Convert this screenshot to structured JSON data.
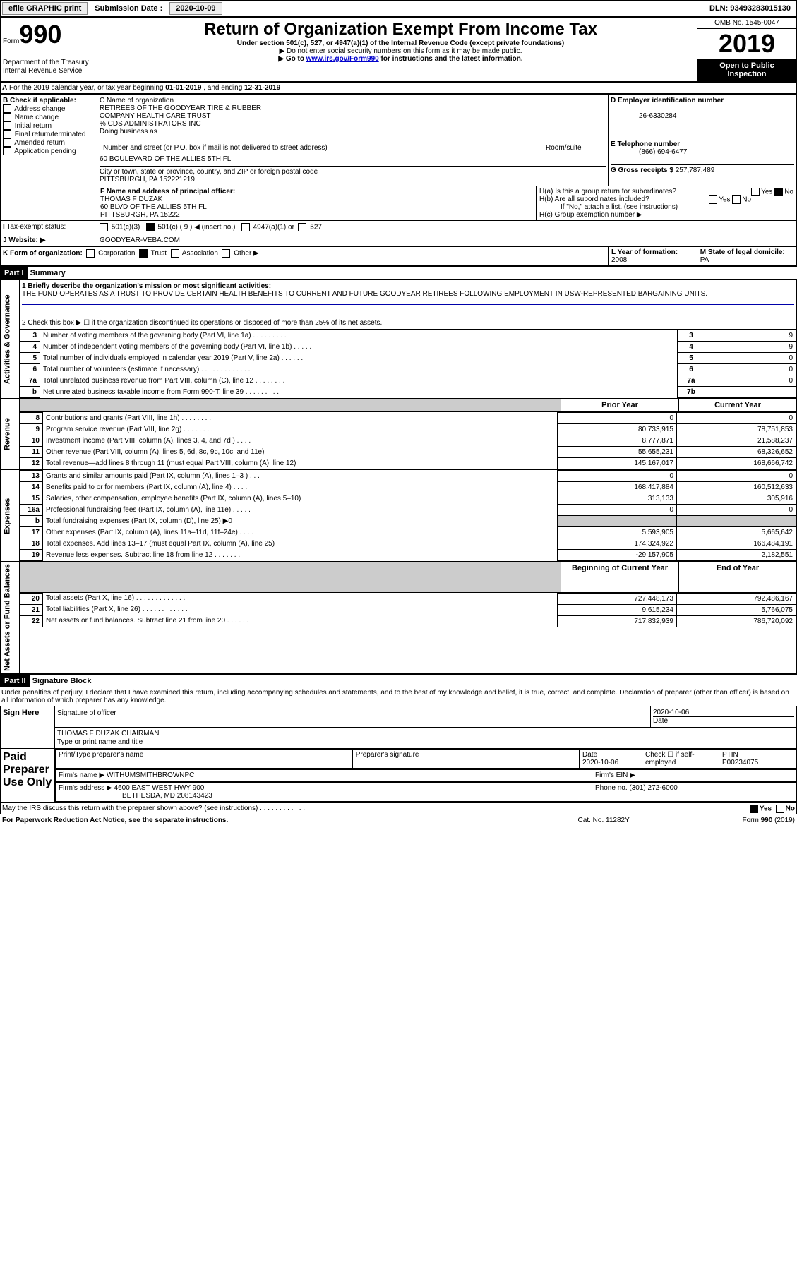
{
  "topbar": {
    "efile": "efile GRAPHIC print",
    "submission_label": "Submission Date :",
    "submission_date": "2020-10-09",
    "dln_label": "DLN:",
    "dln": "93493283015130"
  },
  "header": {
    "form_word": "Form",
    "form_no": "990",
    "dept1": "Department of the Treasury",
    "dept2": "Internal Revenue Service",
    "title": "Return of Organization Exempt From Income Tax",
    "subtitle": "Under section 501(c), 527, or 4947(a)(1) of the Internal Revenue Code (except private foundations)",
    "note1": "▶ Do not enter social security numbers on this form as it may be made public.",
    "note2_pre": "▶ Go to ",
    "note2_link": "www.irs.gov/Form990",
    "note2_post": " for instructions and the latest information.",
    "omb": "OMB No. 1545-0047",
    "year": "2019",
    "inspection1": "Open to Public",
    "inspection2": "Inspection"
  },
  "A": {
    "text_pre": "For the 2019 calendar year, or tax year beginning ",
    "begin": "01-01-2019",
    "mid": " , and ending ",
    "end": "12-31-2019"
  },
  "B": {
    "label": "B Check if applicable:",
    "opts": [
      "Address change",
      "Name change",
      "Initial return",
      "Final return/terminated",
      "Amended return",
      "Application pending"
    ]
  },
  "C": {
    "label": "C Name of organization",
    "name1": "RETIREES OF THE GOODYEAR TIRE & RUBBER",
    "name2": "COMPANY HEALTH CARE TRUST",
    "name3": "% CDS ADMINISTRATORS INC",
    "dba": "Doing business as",
    "street_label": "Number and street (or P.O. box if mail is not delivered to street address)",
    "room_label": "Room/suite",
    "street": "60 BOULEVARD OF THE ALLIES 5TH FL",
    "city_label": "City or town, state or province, country, and ZIP or foreign postal code",
    "city": "PITTSBURGH, PA  152221219"
  },
  "D": {
    "label": "D Employer identification number",
    "value": "26-6330284"
  },
  "E": {
    "label": "E Telephone number",
    "value": "(866) 694-6477"
  },
  "G": {
    "label": "G Gross receipts $",
    "value": "257,787,489"
  },
  "F": {
    "label": "F  Name and address of principal officer:",
    "name": "THOMAS F DUZAK",
    "addr1": "60 BLVD OF THE ALLIES 5TH FL",
    "addr2": "PITTSBURGH, PA  15222"
  },
  "H": {
    "a": "H(a)  Is this a group return for subordinates?",
    "b": "H(b)  Are all subordinates included?",
    "b_note": "If \"No,\" attach a list. (see instructions)",
    "c": "H(c)  Group exemption number ▶",
    "yes": "Yes",
    "no": "No"
  },
  "I": {
    "label": "Tax-exempt status:",
    "c3": "501(c)(3)",
    "c": "501(c) ( 9 ) ◀ (insert no.)",
    "a1": "4947(a)(1) or",
    "s527": "527"
  },
  "J": {
    "label": "Website: ▶",
    "value": "GOODYEAR-VEBA.COM"
  },
  "K": {
    "label": "K Form of organization:",
    "corp": "Corporation",
    "trust": "Trust",
    "assoc": "Association",
    "other": "Other ▶"
  },
  "L": {
    "label": "L Year of formation:",
    "value": "2008"
  },
  "M": {
    "label": "M State of legal domicile:",
    "value": "PA"
  },
  "partI": {
    "label": "Part I",
    "title": "Summary"
  },
  "summary": {
    "q1": "1  Briefly describe the organization's mission or most significant activities:",
    "mission": "THE FUND OPERATES AS A TRUST TO PROVIDE CERTAIN HEALTH BENEFITS TO CURRENT AND FUTURE GOODYEAR RETIREES FOLLOWING EMPLOYMENT IN USW-REPRESENTED BARGAINING UNITS.",
    "q2": "2  Check this box ▶ ☐  if the organization discontinued its operations or disposed of more than 25% of its net assets.",
    "rows_ag": [
      {
        "n": "3",
        "t": "Number of voting members of the governing body (Part VI, line 1a)  .  .  .  .  .  .  .  .  .",
        "box": "3",
        "v": "9"
      },
      {
        "n": "4",
        "t": "Number of independent voting members of the governing body (Part VI, line 1b)  .  .  .  .  .",
        "box": "4",
        "v": "9"
      },
      {
        "n": "5",
        "t": "Total number of individuals employed in calendar year 2019 (Part V, line 2a)  .  .  .  .  .  .",
        "box": "5",
        "v": "0"
      },
      {
        "n": "6",
        "t": "Total number of volunteers (estimate if necessary)  .  .  .  .  .  .  .  .  .  .  .  .  .",
        "box": "6",
        "v": "0"
      },
      {
        "n": "7a",
        "t": "Total unrelated business revenue from Part VIII, column (C), line 12  .  .  .  .  .  .  .  .",
        "box": "7a",
        "v": "0"
      },
      {
        "n": "b",
        "t": "Net unrelated business taxable income from Form 990-T, line 39  .  .  .  .  .  .  .  .  .",
        "box": "7b",
        "v": ""
      }
    ],
    "prior": "Prior Year",
    "current": "Current Year",
    "rows_rev": [
      {
        "n": "8",
        "t": "Contributions and grants (Part VIII, line 1h)  .  .  .  .  .  .  .  .",
        "p": "0",
        "c": "0"
      },
      {
        "n": "9",
        "t": "Program service revenue (Part VIII, line 2g)  .  .  .  .  .  .  .  .",
        "p": "80,733,915",
        "c": "78,751,853"
      },
      {
        "n": "10",
        "t": "Investment income (Part VIII, column (A), lines 3, 4, and 7d )  .  .  .  .",
        "p": "8,777,871",
        "c": "21,588,237"
      },
      {
        "n": "11",
        "t": "Other revenue (Part VIII, column (A), lines 5, 6d, 8c, 9c, 10c, and 11e)",
        "p": "55,655,231",
        "c": "68,326,652"
      },
      {
        "n": "12",
        "t": "Total revenue—add lines 8 through 11 (must equal Part VIII, column (A), line 12)",
        "p": "145,167,017",
        "c": "168,666,742"
      }
    ],
    "rows_exp": [
      {
        "n": "13",
        "t": "Grants and similar amounts paid (Part IX, column (A), lines 1–3 )  .  .  .",
        "p": "0",
        "c": "0"
      },
      {
        "n": "14",
        "t": "Benefits paid to or for members (Part IX, column (A), line 4)  .  .  .  .",
        "p": "168,417,884",
        "c": "160,512,633"
      },
      {
        "n": "15",
        "t": "Salaries, other compensation, employee benefits (Part IX, column (A), lines 5–10)",
        "p": "313,133",
        "c": "305,916"
      },
      {
        "n": "16a",
        "t": "Professional fundraising fees (Part IX, column (A), line 11e)  .  .  .  .  .",
        "p": "0",
        "c": "0"
      },
      {
        "n": "b",
        "t": "Total fundraising expenses (Part IX, column (D), line 25) ▶0",
        "p": "",
        "c": "",
        "shade": true
      },
      {
        "n": "17",
        "t": "Other expenses (Part IX, column (A), lines 11a–11d, 11f–24e)  .  .  .  .",
        "p": "5,593,905",
        "c": "5,665,642"
      },
      {
        "n": "18",
        "t": "Total expenses. Add lines 13–17 (must equal Part IX, column (A), line 25)",
        "p": "174,324,922",
        "c": "166,484,191"
      },
      {
        "n": "19",
        "t": "Revenue less expenses. Subtract line 18 from line 12  .  .  .  .  .  .  .",
        "p": "-29,157,905",
        "c": "2,182,551"
      }
    ],
    "begin": "Beginning of Current Year",
    "end": "End of Year",
    "rows_na": [
      {
        "n": "20",
        "t": "Total assets (Part X, line 16)  .  .  .  .  .  .  .  .  .  .  .  .  .",
        "p": "727,448,173",
        "c": "792,486,167"
      },
      {
        "n": "21",
        "t": "Total liabilities (Part X, line 26)  .  .  .  .  .  .  .  .  .  .  .  .",
        "p": "9,615,234",
        "c": "5,766,075"
      },
      {
        "n": "22",
        "t": "Net assets or fund balances. Subtract line 21 from line 20  .  .  .  .  .  .",
        "p": "717,832,939",
        "c": "786,720,092"
      }
    ],
    "side_ag": "Activities & Governance",
    "side_rev": "Revenue",
    "side_exp": "Expenses",
    "side_na": "Net Assets or Fund Balances"
  },
  "partII": {
    "label": "Part II",
    "title": "Signature Block",
    "penalty": "Under penalties of perjury, I declare that I have examined this return, including accompanying schedules and statements, and to the best of my knowledge and belief, it is true, correct, and complete. Declaration of preparer (other than officer) is based on all information of which preparer has any knowledge.",
    "sign": "Sign Here",
    "sig_label": "Signature of officer",
    "date_label": "Date",
    "sig_date": "2020-10-06",
    "officer": "THOMAS F DUZAK  CHAIRMAN",
    "officer_sub": "Type or print name and title",
    "paid": "Paid Preparer Use Only",
    "pt_name": "Print/Type preparer's name",
    "pt_sig": "Preparer's signature",
    "pt_date": "Date",
    "pt_date_v": "2020-10-06",
    "pt_check": "Check ☐ if self-employed",
    "ptin_l": "PTIN",
    "ptin": "P00234075",
    "firm_name_l": "Firm's name    ▶",
    "firm_name": "WITHUMSMITHBROWNPC",
    "firm_ein": "Firm's EIN ▶",
    "firm_addr_l": "Firm's address ▶",
    "firm_addr1": "4600 EAST WEST HWY 900",
    "firm_addr2": "BETHESDA, MD  208143423",
    "phone_l": "Phone no.",
    "phone": "(301) 272-6000",
    "discuss": "May the IRS discuss this return with the preparer shown above? (see instructions)  .  .  .  .  .  .  .  .  .  .  .  .",
    "yes": "Yes",
    "no": "No"
  },
  "footer": {
    "left": "For Paperwork Reduction Act Notice, see the separate instructions.",
    "mid": "Cat. No. 11282Y",
    "right": "Form 990 (2019)"
  }
}
